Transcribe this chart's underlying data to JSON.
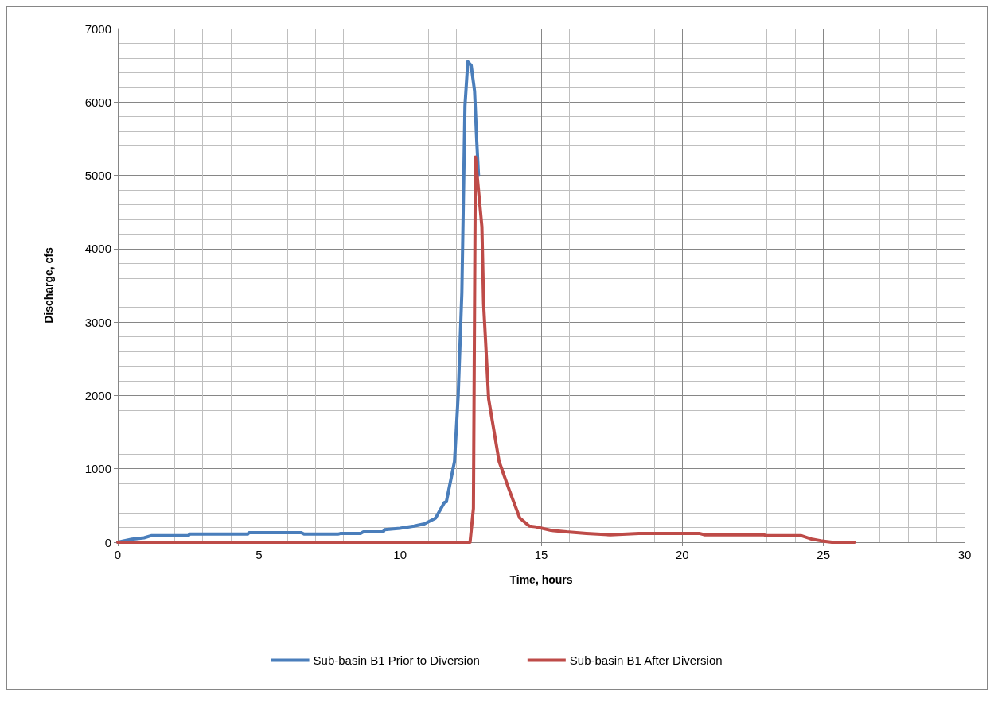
{
  "chart_data": {
    "type": "line",
    "xlabel": "Time, hours",
    "ylabel": "Discharge, cfs",
    "xlim": [
      0,
      30
    ],
    "xticks": [
      0,
      5,
      10,
      15,
      20,
      25,
      30
    ],
    "ylim": [
      0,
      7000
    ],
    "yticks": [
      0,
      1000,
      2000,
      3000,
      4000,
      5000,
      6000,
      7000
    ],
    "grid": true,
    "legend": "bottom",
    "marker": "none",
    "line_style": "solid",
    "series": [
      {
        "name": "Sub-basin B1 Prior to Diversion",
        "color": "#4a7ebb",
        "x": [
          0,
          0.5,
          0.93,
          1.2,
          2.5,
          2.55,
          4.6,
          4.65,
          6.5,
          6.6,
          7.8,
          7.9,
          8.6,
          8.7,
          9.4,
          9.45,
          10.0,
          10.5,
          10.86,
          11.22,
          11.26,
          11.57,
          11.64,
          11.93,
          12.06,
          12.19,
          12.3,
          12.4,
          12.52,
          12.64,
          12.72,
          12.78
        ],
        "values": [
          0,
          40,
          60,
          90,
          90,
          110,
          110,
          130,
          130,
          110,
          110,
          120,
          120,
          140,
          140,
          170,
          190,
          220,
          250,
          320,
          330,
          540,
          550,
          1100,
          2000,
          3400,
          5950,
          6550,
          6500,
          6150,
          5450,
          5000
        ]
      },
      {
        "name": "Sub-basin B1 After Diversion",
        "color": "#be4b48",
        "x": [
          0,
          12.48,
          12.6,
          12.67,
          12.9,
          12.96,
          13.14,
          13.51,
          13.88,
          14.24,
          14.58,
          14.8,
          15.37,
          15.9,
          16.6,
          17.45,
          18.46,
          20.6,
          20.8,
          22.9,
          22.97,
          24.2,
          24.6,
          24.9,
          25.3,
          26.1
        ],
        "values": [
          0,
          0,
          460,
          5250,
          4300,
          3250,
          1950,
          1100,
          700,
          330,
          220,
          210,
          160,
          140,
          120,
          100,
          120,
          120,
          100,
          100,
          90,
          90,
          40,
          20,
          0,
          0
        ]
      }
    ]
  }
}
